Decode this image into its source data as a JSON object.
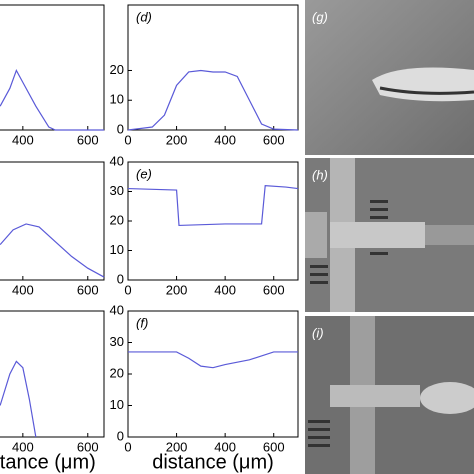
{
  "chart_data": [
    {
      "type": "line",
      "x": [
        330,
        360,
        380,
        400,
        440,
        480,
        500,
        650
      ],
      "values": [
        8,
        14,
        20,
        16,
        8,
        1,
        0,
        0
      ],
      "color": "#5a5ad8",
      "xlim": [
        0,
        650
      ],
      "ylim": [
        0,
        42
      ],
      "xticks": [
        400,
        600
      ]
    },
    {
      "type": "line",
      "x": [
        330,
        370,
        410,
        450,
        500,
        550,
        600,
        650
      ],
      "values": [
        12,
        17,
        19,
        18,
        13,
        8,
        4,
        1
      ],
      "color": "#5a5ad8",
      "xlim": [
        0,
        650
      ],
      "ylim": [
        0,
        40
      ],
      "xticks": [
        400,
        600
      ]
    },
    {
      "type": "line",
      "x": [
        330,
        360,
        380,
        400,
        420,
        440
      ],
      "values": [
        10,
        20,
        24,
        22,
        12,
        0
      ],
      "color": "#5a5ad8",
      "xlim": [
        0,
        650
      ],
      "ylim": [
        0,
        40
      ],
      "xticks": [
        400,
        600
      ],
      "xlabel": "distance (μm)"
    },
    {
      "type": "line",
      "label": "(d)",
      "x": [
        0,
        100,
        150,
        200,
        250,
        300,
        350,
        400,
        450,
        500,
        550,
        600,
        700
      ],
      "values": [
        0,
        1,
        5,
        15,
        19.5,
        20,
        19.5,
        19.5,
        18,
        10,
        2,
        0.3,
        0
      ],
      "color": "#5a5ad8",
      "xlim": [
        0,
        700
      ],
      "ylim": [
        0,
        42
      ],
      "xticks": [
        0,
        200,
        400,
        600
      ],
      "yticks": [
        0,
        10,
        20
      ]
    },
    {
      "type": "line",
      "label": "(e)",
      "x": [
        0,
        200,
        210,
        400,
        550,
        565,
        650,
        700
      ],
      "values": [
        31,
        30.5,
        18.5,
        19,
        19,
        32,
        31.5,
        31
      ],
      "color": "#5a5ad8",
      "xlim": [
        0,
        700
      ],
      "ylim": [
        0,
        40
      ],
      "xticks": [
        0,
        200,
        400,
        600
      ],
      "yticks": [
        0,
        10,
        20,
        30,
        40
      ]
    },
    {
      "type": "line",
      "label": "(f)",
      "x": [
        0,
        200,
        250,
        300,
        350,
        400,
        500,
        600,
        700
      ],
      "values": [
        27,
        27,
        25,
        22.5,
        22,
        23,
        24.5,
        27,
        27
      ],
      "color": "#5a5ad8",
      "xlim": [
        0,
        700
      ],
      "ylim": [
        0,
        40
      ],
      "xticks": [
        0,
        200,
        400,
        600
      ],
      "yticks": [
        0,
        10,
        20,
        30,
        40
      ],
      "xlabel": "distance (μm)"
    }
  ],
  "images": [
    {
      "label": "(g)"
    },
    {
      "label": "(h)"
    },
    {
      "label": "(i)"
    }
  ]
}
